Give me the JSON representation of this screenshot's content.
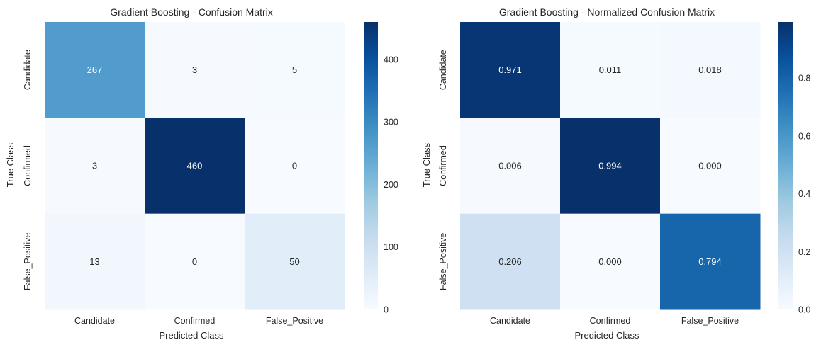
{
  "chart_data": [
    {
      "type": "heatmap",
      "title": "Gradient Boosting - Confusion Matrix",
      "xlabel": "Predicted Class",
      "ylabel": "True Class",
      "x_categories": [
        "Candidate",
        "Confirmed",
        "False_Positive"
      ],
      "y_categories": [
        "Candidate",
        "Confirmed",
        "False_Positive"
      ],
      "values": [
        [
          267,
          3,
          5
        ],
        [
          3,
          460,
          0
        ],
        [
          13,
          0,
          50
        ]
      ],
      "cell_labels": [
        [
          "267",
          "3",
          "5"
        ],
        [
          "3",
          "460",
          "0"
        ],
        [
          "13",
          "0",
          "50"
        ]
      ],
      "colormap": "Blues",
      "colorbar": {
        "vmin": 0,
        "vmax": 460,
        "ticks": [
          0,
          100,
          200,
          300,
          400
        ],
        "tick_labels": [
          "0",
          "100",
          "200",
          "300",
          "400"
        ]
      }
    },
    {
      "type": "heatmap",
      "title": "Gradient Boosting - Normalized Confusion Matrix",
      "xlabel": "Predicted Class",
      "ylabel": "True Class",
      "x_categories": [
        "Candidate",
        "Confirmed",
        "False_Positive"
      ],
      "y_categories": [
        "Candidate",
        "Confirmed",
        "False_Positive"
      ],
      "values": [
        [
          0.971,
          0.011,
          0.018
        ],
        [
          0.006,
          0.994,
          0.0
        ],
        [
          0.206,
          0.0,
          0.794
        ]
      ],
      "cell_labels": [
        [
          "0.971",
          "0.011",
          "0.018"
        ],
        [
          "0.006",
          "0.994",
          "0.000"
        ],
        [
          "0.206",
          "0.000",
          "0.794"
        ]
      ],
      "colormap": "Blues",
      "colorbar": {
        "vmin": 0.0,
        "vmax": 0.994,
        "ticks": [
          0.0,
          0.2,
          0.4,
          0.6,
          0.8
        ],
        "tick_labels": [
          "0.0",
          "0.2",
          "0.4",
          "0.6",
          "0.8"
        ]
      }
    }
  ]
}
